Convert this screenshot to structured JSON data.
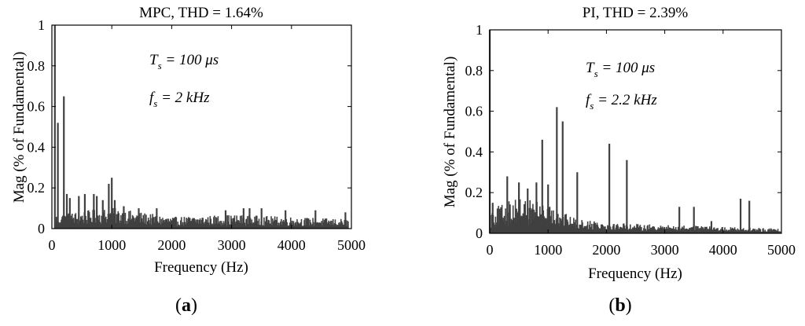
{
  "chart_data": [
    {
      "type": "bar",
      "title": "MPC, THD = 1.64%",
      "xlabel": "Frequency (Hz)",
      "ylabel": "Mag (% of Fundamental)",
      "xlim": [
        0,
        5000
      ],
      "ylim": [
        0,
        1
      ],
      "xticks": [
        "0",
        "1000",
        "2000",
        "3000",
        "4000",
        "5000"
      ],
      "yticks": [
        "0",
        "0.2",
        "0.4",
        "0.6",
        "0.8",
        "1"
      ],
      "annotations": {
        "ts_main": "T",
        "ts_sub": "s",
        "ts_rest": " = 100 μs",
        "fs_main": "f",
        "fs_sub": "s",
        "fs_rest": " = 2 kHz"
      },
      "panel_label": {
        "open": "(",
        "letter": "a",
        "close": ")"
      },
      "color": "#404040",
      "peaks": [
        [
          50,
          1.0
        ],
        [
          100,
          0.52
        ],
        [
          200,
          0.65
        ],
        [
          250,
          0.17
        ],
        [
          300,
          0.15
        ],
        [
          450,
          0.16
        ],
        [
          550,
          0.17
        ],
        [
          700,
          0.17
        ],
        [
          750,
          0.16
        ],
        [
          850,
          0.14
        ],
        [
          950,
          0.22
        ],
        [
          1000,
          0.25
        ],
        [
          1050,
          0.14
        ],
        [
          1200,
          0.11
        ],
        [
          1450,
          0.1
        ],
        [
          1750,
          0.1
        ],
        [
          2900,
          0.09
        ],
        [
          3200,
          0.1
        ],
        [
          3300,
          0.1
        ],
        [
          3500,
          0.1
        ],
        [
          3900,
          0.09
        ],
        [
          4400,
          0.09
        ],
        [
          4900,
          0.08
        ]
      ],
      "noise": {
        "start": 50,
        "end": 4950,
        "step": 12,
        "levels": [
          [
            0,
            0.06
          ],
          [
            1000,
            0.09
          ],
          [
            2000,
            0.05
          ],
          [
            3000,
            0.06
          ],
          [
            4000,
            0.05
          ],
          [
            5000,
            0.04
          ]
        ]
      }
    },
    {
      "type": "bar",
      "title": "PI, THD = 2.39%",
      "xlabel": "Frequency (Hz)",
      "ylabel": "Mag (% of Fundamental)",
      "xlim": [
        0,
        5000
      ],
      "ylim": [
        0,
        1
      ],
      "xticks": [
        "0",
        "1000",
        "2000",
        "3000",
        "4000",
        "5000"
      ],
      "yticks": [
        "0",
        "0.2",
        "0.4",
        "0.6",
        "0.8",
        "1"
      ],
      "annotations": {
        "ts_main": "T",
        "ts_sub": "s",
        "ts_rest": " = 100 μs",
        "fs_main": "f",
        "fs_sub": "s",
        "fs_rest": " = 2.2 kHz"
      },
      "panel_label": {
        "open": "(",
        "letter": "b",
        "close": ")"
      },
      "color": "#404040",
      "peaks": [
        [
          0,
          1.0
        ],
        [
          50,
          0.15
        ],
        [
          300,
          0.28
        ],
        [
          500,
          0.25
        ],
        [
          650,
          0.22
        ],
        [
          800,
          0.25
        ],
        [
          900,
          0.46
        ],
        [
          1000,
          0.24
        ],
        [
          1150,
          0.62
        ],
        [
          1250,
          0.55
        ],
        [
          1500,
          0.3
        ],
        [
          2050,
          0.44
        ],
        [
          2350,
          0.36
        ],
        [
          3250,
          0.13
        ],
        [
          3500,
          0.13
        ],
        [
          3800,
          0.06
        ],
        [
          4300,
          0.17
        ],
        [
          4450,
          0.16
        ]
      ],
      "noise": {
        "start": 20,
        "end": 4980,
        "step": 10,
        "levels": [
          [
            0,
            0.1
          ],
          [
            500,
            0.16
          ],
          [
            1000,
            0.12
          ],
          [
            1500,
            0.06
          ],
          [
            2500,
            0.04
          ],
          [
            5000,
            0.02
          ]
        ]
      }
    }
  ]
}
